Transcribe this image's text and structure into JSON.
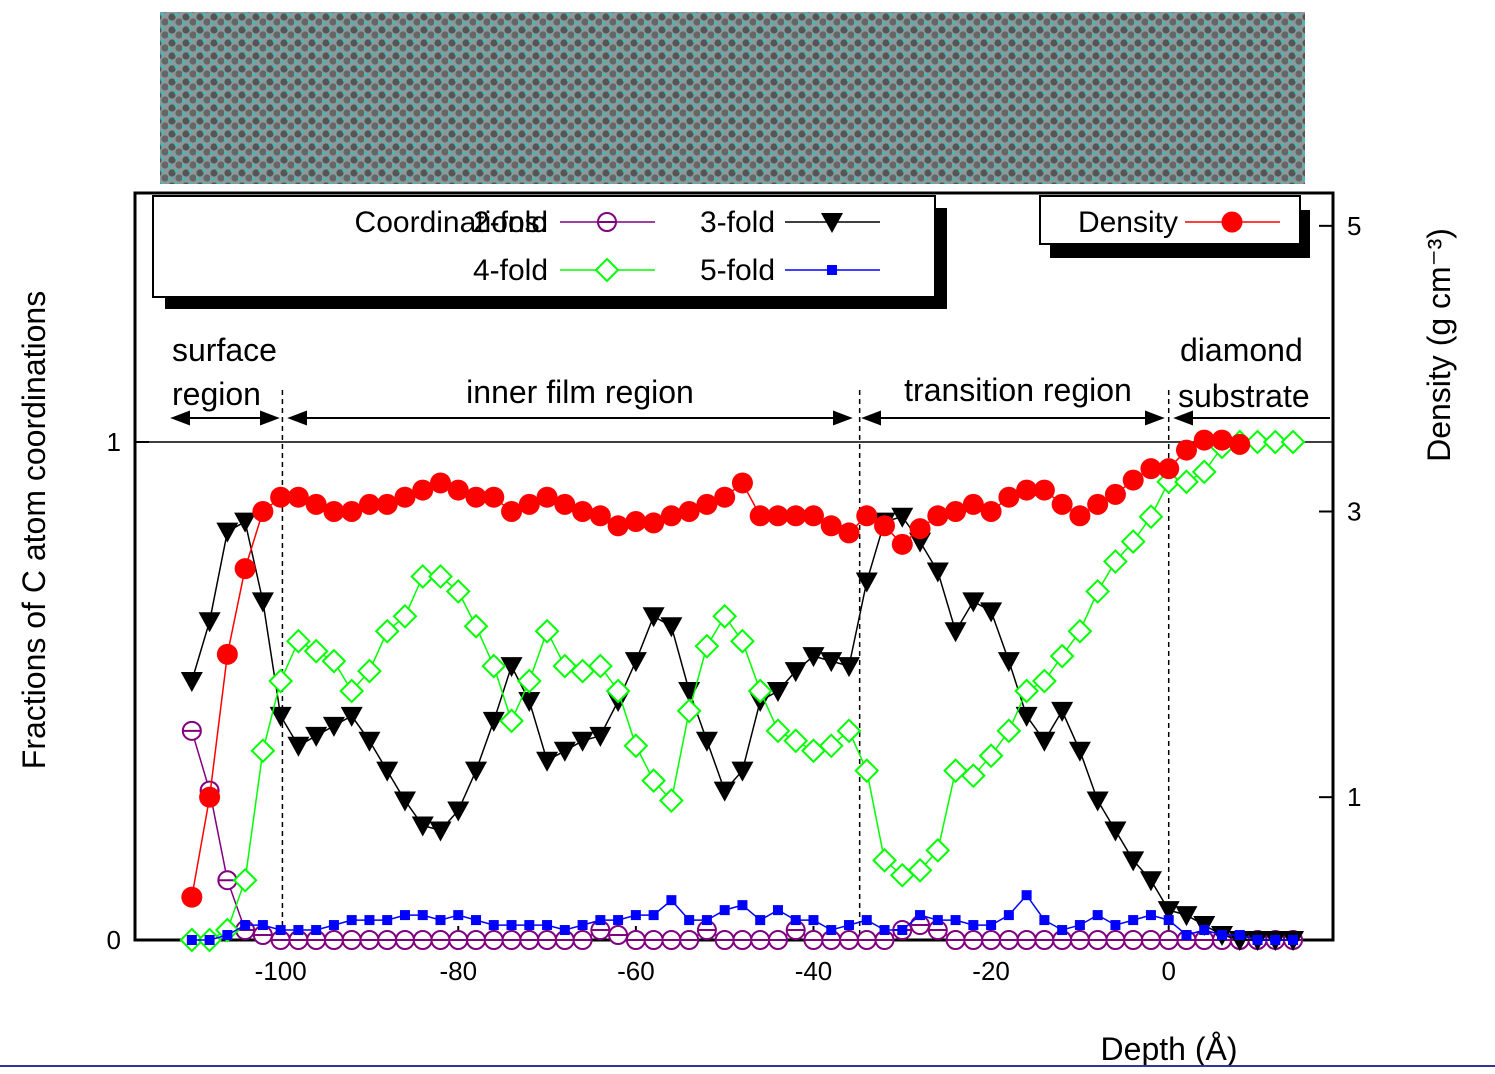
{
  "chart_data": {
    "type": "line",
    "x_label": "Depth (Å)",
    "y_label": "Fractions of C atom coordinations",
    "y2_label": "Density (g cm⁻³)",
    "legend_title": "Coordinations:",
    "annotations": [
      "surface",
      "region",
      "inner film region",
      "transition region",
      "diamond",
      "substrate"
    ],
    "xlim": [
      -116.4,
      18.5
    ],
    "xticks": [
      -100,
      -80,
      -60,
      -40,
      -20,
      0
    ],
    "ylim": [
      0,
      1.5
    ],
    "yticks": [
      0,
      1
    ],
    "y2lim": [
      0,
      5.23
    ],
    "y2ticks": [
      1,
      3,
      5
    ],
    "hline": 1,
    "vlines": [
      -99.8,
      -34.8,
      0
    ],
    "x": [
      -110,
      -108,
      -106,
      -104,
      -102,
      -100,
      -98,
      -96,
      -94,
      -92,
      -90,
      -88,
      -86,
      -84,
      -82,
      -80,
      -78,
      -76,
      -74,
      -72,
      -70,
      -68,
      -66,
      -64,
      -62,
      -60,
      -58,
      -56,
      -54,
      -52,
      -50,
      -48,
      -46,
      -44,
      -42,
      -40,
      -38,
      -36,
      -34,
      -32,
      -30,
      -28,
      -26,
      -24,
      -22,
      -20,
      -18,
      -16,
      -14,
      -12,
      -10,
      -8,
      -6,
      -4,
      -2,
      0,
      2,
      4,
      6,
      8,
      10,
      12,
      14
    ],
    "series": [
      {
        "name": "2-fold",
        "color": "#800080",
        "marker": "circle-bar",
        "values": [
          0.42,
          0.3,
          0.12,
          0.02,
          0.01,
          0,
          0,
          0,
          0,
          0,
          0,
          0,
          0,
          0,
          0,
          0,
          0,
          0,
          0,
          0,
          0,
          0,
          0,
          0.02,
          0.01,
          0,
          0,
          0,
          0,
          0.02,
          0,
          0,
          0,
          0,
          0.02,
          0,
          0,
          0,
          0,
          0,
          0.02,
          0.03,
          0.02,
          0,
          0,
          0,
          0,
          0,
          0,
          0,
          0,
          0,
          0,
          0,
          0,
          0,
          0,
          0,
          0,
          0,
          0,
          0,
          0
        ]
      },
      {
        "name": "3-fold",
        "color": "#000000",
        "marker": "triangle-down",
        "values": [
          0.52,
          0.64,
          0.82,
          0.84,
          0.68,
          0.45,
          0.39,
          0.41,
          0.43,
          0.45,
          0.4,
          0.34,
          0.28,
          0.23,
          0.22,
          0.26,
          0.34,
          0.44,
          0.55,
          0.48,
          0.36,
          0.38,
          0.4,
          0.41,
          0.48,
          0.56,
          0.65,
          0.63,
          0.5,
          0.4,
          0.3,
          0.34,
          0.48,
          0.5,
          0.54,
          0.57,
          0.56,
          0.55,
          0.72,
          0.84,
          0.85,
          0.8,
          0.74,
          0.62,
          0.68,
          0.66,
          0.56,
          0.45,
          0.4,
          0.46,
          0.38,
          0.28,
          0.22,
          0.16,
          0.12,
          0.06,
          0.05,
          0.03,
          0.01,
          0,
          0,
          0,
          0
        ]
      },
      {
        "name": "4-fold",
        "color": "#00ff00",
        "marker": "diamond-open",
        "values": [
          0,
          0,
          0.02,
          0.12,
          0.38,
          0.52,
          0.6,
          0.58,
          0.56,
          0.5,
          0.54,
          0.62,
          0.65,
          0.73,
          0.73,
          0.7,
          0.63,
          0.55,
          0.44,
          0.52,
          0.62,
          0.55,
          0.54,
          0.55,
          0.5,
          0.39,
          0.32,
          0.28,
          0.46,
          0.59,
          0.65,
          0.6,
          0.5,
          0.42,
          0.4,
          0.38,
          0.39,
          0.42,
          0.34,
          0.16,
          0.13,
          0.14,
          0.18,
          0.34,
          0.33,
          0.37,
          0.42,
          0.5,
          0.52,
          0.57,
          0.62,
          0.7,
          0.76,
          0.8,
          0.85,
          0.92,
          0.92,
          0.94,
          0.99,
          1,
          1,
          1,
          1
        ]
      },
      {
        "name": "5-fold",
        "color": "#0000ff",
        "marker": "square",
        "values": [
          0,
          0,
          0.01,
          0.03,
          0.03,
          0.02,
          0.02,
          0.02,
          0.03,
          0.04,
          0.04,
          0.04,
          0.05,
          0.05,
          0.04,
          0.05,
          0.04,
          0.03,
          0.03,
          0.03,
          0.03,
          0.02,
          0.03,
          0.04,
          0.04,
          0.05,
          0.05,
          0.08,
          0.04,
          0.04,
          0.06,
          0.07,
          0.04,
          0.06,
          0.04,
          0.04,
          0.02,
          0.03,
          0.04,
          0.02,
          0.02,
          0.05,
          0.04,
          0.04,
          0.03,
          0.03,
          0.05,
          0.09,
          0.04,
          0.02,
          0.03,
          0.05,
          0.03,
          0.04,
          0.05,
          0.04,
          0.01,
          0.02,
          0.01,
          0.01,
          0,
          0,
          0
        ]
      },
      {
        "name": "Density",
        "color": "#ff0000",
        "marker": "circle",
        "axis": "y2",
        "values": [
          0.3,
          1.0,
          2.0,
          2.6,
          3.0,
          3.1,
          3.1,
          3.05,
          3.0,
          3.0,
          3.05,
          3.05,
          3.1,
          3.15,
          3.2,
          3.15,
          3.1,
          3.1,
          3.0,
          3.05,
          3.1,
          3.05,
          3.0,
          2.97,
          2.9,
          2.93,
          2.92,
          2.97,
          3.0,
          3.05,
          3.1,
          3.2,
          2.97,
          2.97,
          2.97,
          2.97,
          2.9,
          2.85,
          2.97,
          2.9,
          2.77,
          2.88,
          2.97,
          3.0,
          3.05,
          3.0,
          3.1,
          3.15,
          3.15,
          3.05,
          2.97,
          3.05,
          3.12,
          3.22,
          3.3,
          3.3,
          3.43,
          3.5,
          3.5,
          3.47,
          null,
          null,
          null
        ]
      }
    ]
  }
}
